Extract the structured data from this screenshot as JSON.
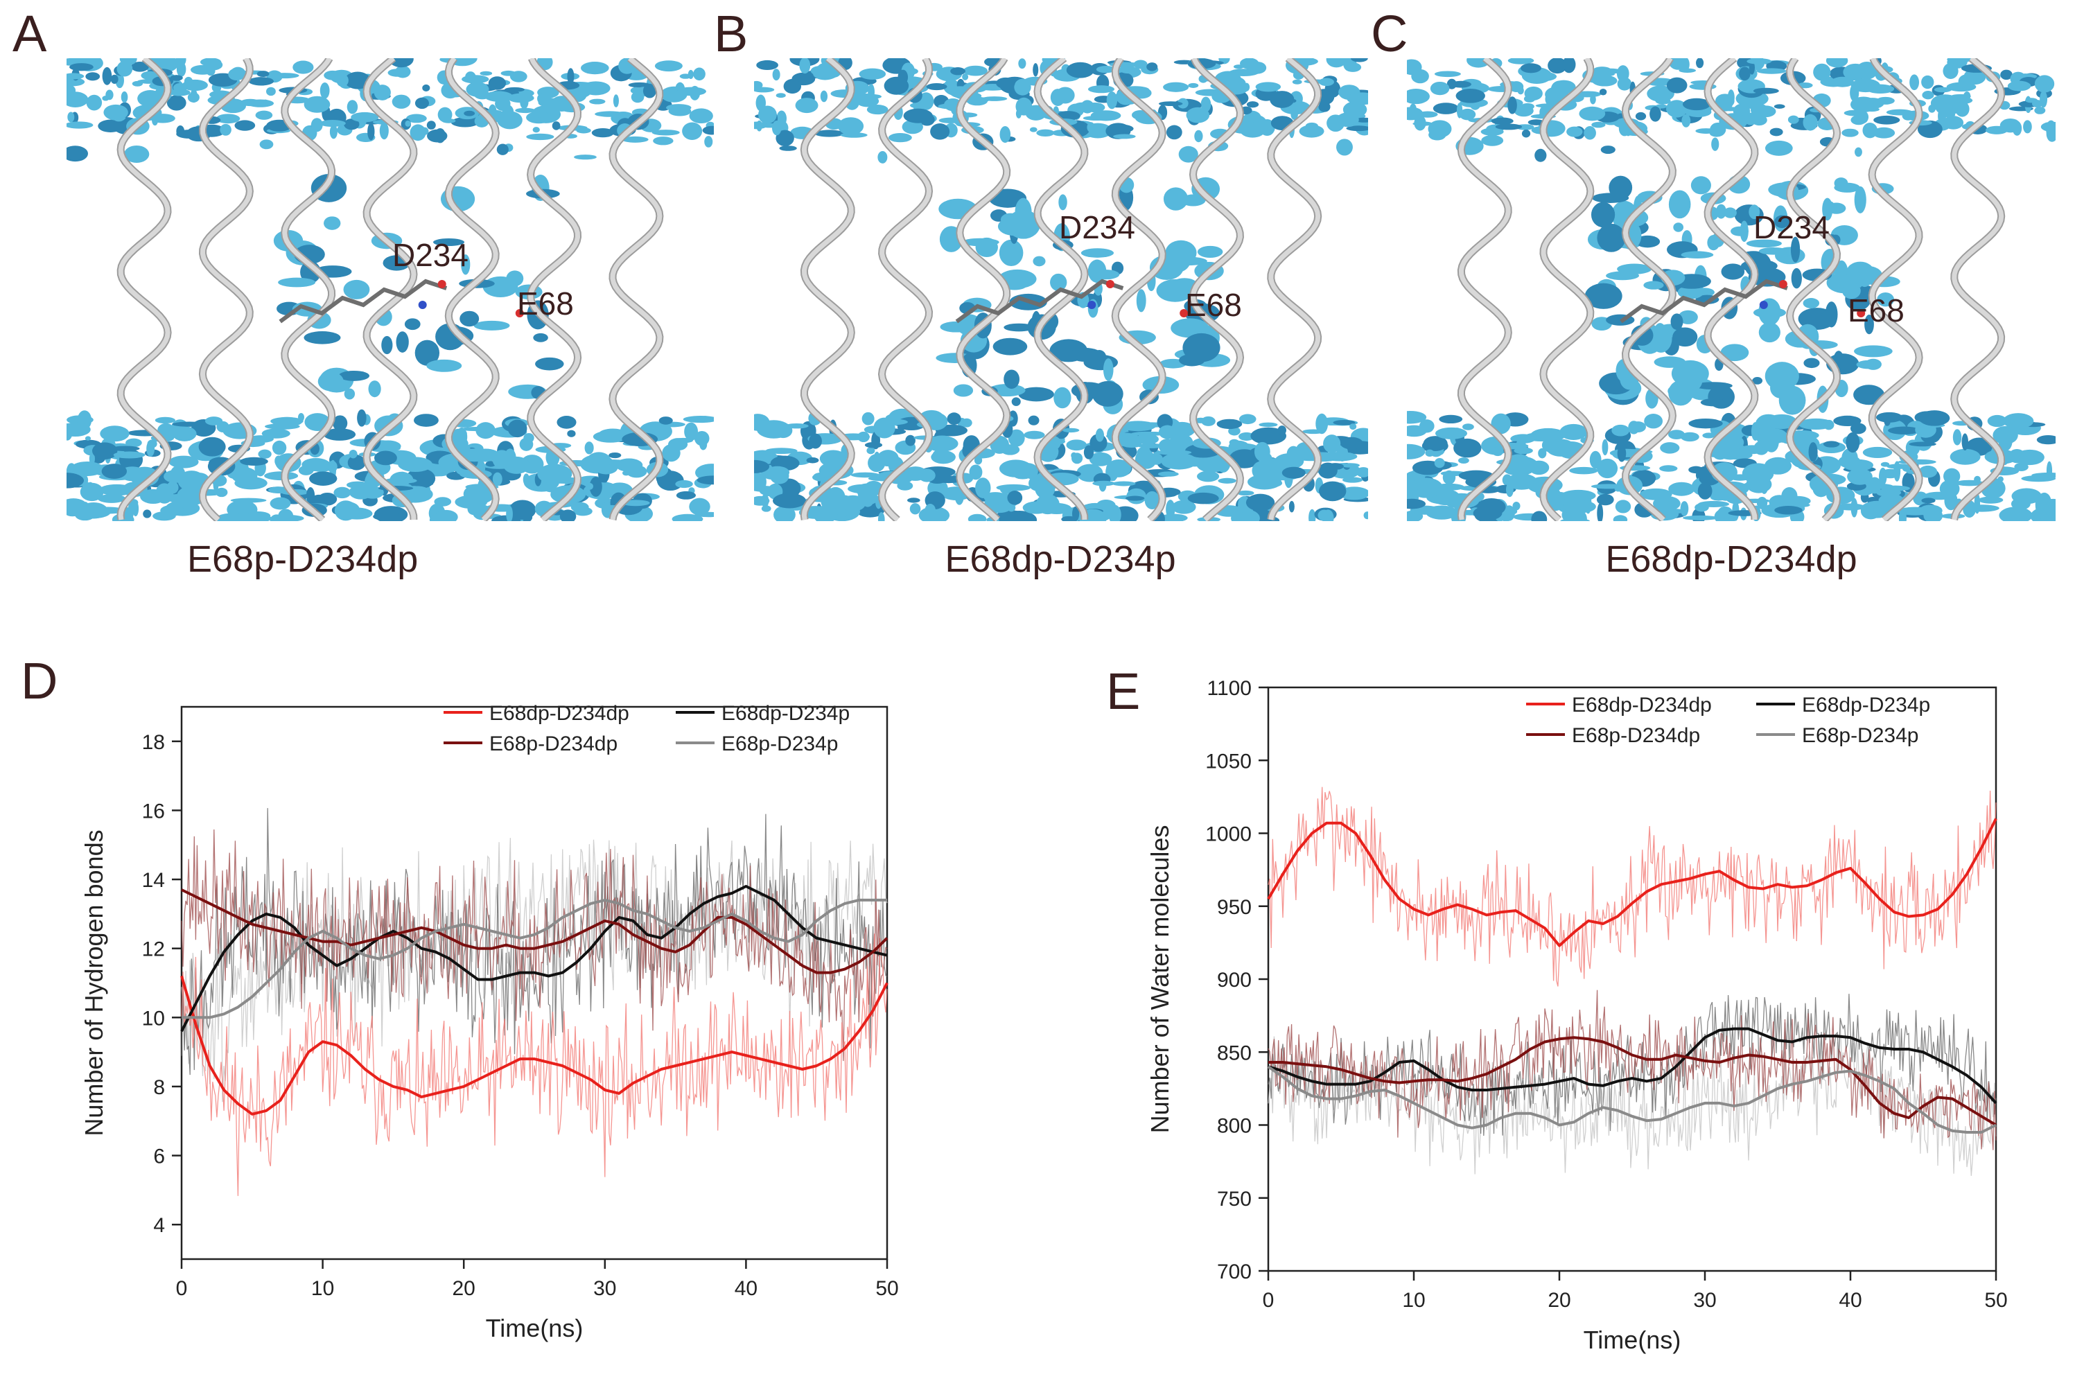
{
  "panels": {
    "A": {
      "letter": "A",
      "caption": "E68p-D234dp",
      "label_d234": "D234",
      "label_e68": "E68"
    },
    "B": {
      "letter": "B",
      "caption": "E68dp-D234p",
      "label_d234": "D234",
      "label_e68": "E68"
    },
    "C": {
      "letter": "C",
      "caption": "E68dp-D234dp",
      "label_d234": "D234",
      "label_e68": "E68"
    },
    "D": {
      "letter": "D"
    },
    "E": {
      "letter": "E"
    }
  },
  "colors": {
    "water": "#56b8dc",
    "water_dark": "#2e86b4",
    "helix": "#d8d8d8",
    "E68dp-D234dp": "#e8211c",
    "E68dp-D234p": "#111111",
    "E68p-D234dp": "#7a1010",
    "E68p-D234p": "#8a8a8a"
  },
  "chart_data": [
    {
      "type": "line",
      "panel": "D",
      "xlabel": "Time(ns)",
      "ylabel": "Number of Hydrogen bonds",
      "xlim": [
        0,
        50
      ],
      "ylim": [
        3,
        19
      ],
      "xticks": [
        0,
        10,
        20,
        30,
        40,
        50
      ],
      "yticks": [
        4,
        6,
        8,
        10,
        12,
        14,
        16,
        18
      ],
      "legend": {
        "placement": "top-right",
        "order": [
          "E68dp-D234dp",
          "E68dp-D234p",
          "E68p-D234dp",
          "E68p-D234p"
        ]
      },
      "smoothed_series": [
        {
          "name": "E68dp-D234dp",
          "x": [
            0,
            1,
            2,
            3,
            4,
            5,
            6,
            7,
            8,
            9,
            10,
            11,
            12,
            13,
            14,
            15,
            16,
            17,
            18,
            19,
            20,
            21,
            22,
            23,
            24,
            25,
            26,
            27,
            28,
            29,
            30,
            31,
            32,
            33,
            34,
            35,
            36,
            37,
            38,
            39,
            40,
            41,
            42,
            43,
            44,
            45,
            46,
            47,
            48,
            49,
            50
          ],
          "y": [
            11.2,
            9.8,
            8.6,
            7.9,
            7.5,
            7.2,
            7.3,
            7.6,
            8.3,
            9.0,
            9.3,
            9.2,
            8.9,
            8.5,
            8.2,
            8.0,
            7.9,
            7.7,
            7.8,
            7.9,
            8.0,
            8.2,
            8.4,
            8.6,
            8.8,
            8.8,
            8.7,
            8.6,
            8.4,
            8.2,
            7.9,
            7.8,
            8.1,
            8.3,
            8.5,
            8.6,
            8.7,
            8.8,
            8.9,
            9.0,
            8.9,
            8.8,
            8.7,
            8.6,
            8.5,
            8.6,
            8.8,
            9.1,
            9.6,
            10.2,
            11.0
          ]
        },
        {
          "name": "E68dp-D234p",
          "x": [
            0,
            1,
            2,
            3,
            4,
            5,
            6,
            7,
            8,
            9,
            10,
            11,
            12,
            13,
            14,
            15,
            16,
            17,
            18,
            19,
            20,
            21,
            22,
            23,
            24,
            25,
            26,
            27,
            28,
            29,
            30,
            31,
            32,
            33,
            34,
            35,
            36,
            37,
            38,
            39,
            40,
            41,
            42,
            43,
            44,
            45,
            46,
            47,
            48,
            49,
            50
          ],
          "y": [
            9.6,
            10.4,
            11.2,
            11.9,
            12.4,
            12.8,
            13.0,
            12.9,
            12.6,
            12.1,
            11.8,
            11.5,
            11.7,
            12.0,
            12.3,
            12.5,
            12.3,
            12.0,
            11.9,
            11.7,
            11.4,
            11.1,
            11.1,
            11.2,
            11.3,
            11.3,
            11.2,
            11.3,
            11.6,
            12.0,
            12.5,
            12.9,
            12.8,
            12.4,
            12.3,
            12.6,
            13.0,
            13.3,
            13.5,
            13.6,
            13.8,
            13.6,
            13.4,
            13.0,
            12.6,
            12.3,
            12.2,
            12.1,
            12.0,
            11.9,
            11.8
          ]
        },
        {
          "name": "E68p-D234dp",
          "x": [
            0,
            1,
            2,
            3,
            4,
            5,
            6,
            7,
            8,
            9,
            10,
            11,
            12,
            13,
            14,
            15,
            16,
            17,
            18,
            19,
            20,
            21,
            22,
            23,
            24,
            25,
            26,
            27,
            28,
            29,
            30,
            31,
            32,
            33,
            34,
            35,
            36,
            37,
            38,
            39,
            40,
            41,
            42,
            43,
            44,
            45,
            46,
            47,
            48,
            49,
            50
          ],
          "y": [
            13.7,
            13.5,
            13.3,
            13.1,
            12.9,
            12.7,
            12.6,
            12.5,
            12.4,
            12.3,
            12.2,
            12.2,
            12.1,
            12.2,
            12.3,
            12.4,
            12.5,
            12.6,
            12.5,
            12.3,
            12.1,
            12.0,
            12.0,
            12.1,
            12.0,
            12.0,
            12.1,
            12.2,
            12.4,
            12.6,
            12.8,
            12.7,
            12.4,
            12.2,
            12.0,
            11.9,
            12.1,
            12.5,
            12.9,
            12.9,
            12.7,
            12.4,
            12.1,
            11.8,
            11.5,
            11.3,
            11.3,
            11.4,
            11.6,
            11.9,
            12.3
          ]
        },
        {
          "name": "E68p-D234p",
          "x": [
            0,
            1,
            2,
            3,
            4,
            5,
            6,
            7,
            8,
            9,
            10,
            11,
            12,
            13,
            14,
            15,
            16,
            17,
            18,
            19,
            20,
            21,
            22,
            23,
            24,
            25,
            26,
            27,
            28,
            29,
            30,
            31,
            32,
            33,
            34,
            35,
            36,
            37,
            38,
            39,
            40,
            41,
            42,
            43,
            44,
            45,
            46,
            47,
            48,
            49,
            50
          ],
          "y": [
            10.0,
            10.0,
            10.0,
            10.1,
            10.3,
            10.6,
            11.0,
            11.4,
            11.9,
            12.3,
            12.5,
            12.3,
            12.0,
            11.8,
            11.7,
            11.8,
            12.0,
            12.3,
            12.5,
            12.6,
            12.7,
            12.6,
            12.5,
            12.4,
            12.3,
            12.4,
            12.6,
            12.9,
            13.1,
            13.3,
            13.4,
            13.3,
            13.1,
            13.0,
            12.8,
            12.6,
            12.5,
            12.6,
            12.8,
            13.0,
            12.8,
            12.5,
            12.3,
            12.2,
            12.4,
            12.8,
            13.1,
            13.3,
            13.4,
            13.4,
            13.4
          ]
        }
      ],
      "raw_series": [
        {
          "name": "E68dp-D234dp",
          "seed": 11,
          "center": "smoothed",
          "noise": 1.5,
          "min": 4,
          "max": 15,
          "points": 500
        },
        {
          "name": "E68dp-D234p",
          "seed": 23,
          "center": "smoothed",
          "noise": 1.7,
          "min": 7,
          "max": 18,
          "points": 500
        },
        {
          "name": "E68p-D234dp",
          "seed": 37,
          "center": "smoothed",
          "noise": 1.5,
          "min": 7,
          "max": 17,
          "points": 500
        },
        {
          "name": "E68p-D234p",
          "seed": 51,
          "center": "smoothed",
          "noise": 1.7,
          "min": 7,
          "max": 18,
          "points": 500
        }
      ]
    },
    {
      "type": "line",
      "panel": "E",
      "xlabel": "Time(ns)",
      "ylabel": "Number of Water molecules",
      "xlim": [
        0,
        50
      ],
      "ylim": [
        700,
        1100
      ],
      "xticks": [
        0,
        10,
        20,
        30,
        40,
        50
      ],
      "yticks": [
        700,
        750,
        800,
        850,
        900,
        950,
        1000,
        1050,
        1100
      ],
      "legend": {
        "placement": "top-right",
        "order": [
          "E68dp-D234dp",
          "E68dp-D234p",
          "E68p-D234dp",
          "E68p-D234p"
        ]
      },
      "smoothed_series": [
        {
          "name": "E68dp-D234dp",
          "x": [
            0,
            1,
            2,
            3,
            4,
            5,
            6,
            7,
            8,
            9,
            10,
            11,
            12,
            13,
            14,
            15,
            16,
            17,
            18,
            19,
            20,
            21,
            22,
            23,
            24,
            25,
            26,
            27,
            28,
            29,
            30,
            31,
            32,
            33,
            34,
            35,
            36,
            37,
            38,
            39,
            40,
            41,
            42,
            43,
            44,
            45,
            46,
            47,
            48,
            49,
            50
          ],
          "y": [
            955,
            972,
            988,
            1000,
            1007,
            1007,
            1000,
            985,
            968,
            955,
            948,
            944,
            948,
            951,
            948,
            944,
            946,
            947,
            941,
            935,
            923,
            932,
            940,
            938,
            943,
            952,
            960,
            965,
            967,
            969,
            972,
            974,
            968,
            963,
            962,
            965,
            963,
            964,
            968,
            973,
            976,
            966,
            955,
            946,
            943,
            944,
            948,
            958,
            972,
            990,
            1010
          ]
        },
        {
          "name": "E68dp-D234p",
          "x": [
            0,
            1,
            2,
            3,
            4,
            5,
            6,
            7,
            8,
            9,
            10,
            11,
            12,
            13,
            14,
            15,
            16,
            17,
            18,
            19,
            20,
            21,
            22,
            23,
            24,
            25,
            26,
            27,
            28,
            29,
            30,
            31,
            32,
            33,
            34,
            35,
            36,
            37,
            38,
            39,
            40,
            41,
            42,
            43,
            44,
            45,
            46,
            47,
            48,
            49,
            50
          ],
          "y": [
            840,
            837,
            833,
            830,
            828,
            828,
            828,
            830,
            836,
            843,
            844,
            838,
            831,
            826,
            824,
            824,
            825,
            826,
            827,
            828,
            830,
            832,
            828,
            827,
            830,
            832,
            830,
            832,
            840,
            850,
            860,
            865,
            866,
            866,
            862,
            858,
            857,
            860,
            861,
            861,
            860,
            856,
            853,
            852,
            852,
            850,
            845,
            840,
            834,
            826,
            815
          ]
        },
        {
          "name": "E68p-D234dp",
          "x": [
            0,
            1,
            2,
            3,
            4,
            5,
            6,
            7,
            8,
            9,
            10,
            11,
            12,
            13,
            14,
            15,
            16,
            17,
            18,
            19,
            20,
            21,
            22,
            23,
            24,
            25,
            26,
            27,
            28,
            29,
            30,
            31,
            32,
            33,
            34,
            35,
            36,
            37,
            38,
            39,
            40,
            41,
            42,
            43,
            44,
            45,
            46,
            47,
            48,
            49,
            50
          ],
          "y": [
            843,
            843,
            842,
            841,
            840,
            838,
            835,
            832,
            830,
            829,
            830,
            831,
            831,
            830,
            832,
            835,
            840,
            845,
            852,
            857,
            859,
            860,
            859,
            857,
            853,
            848,
            845,
            845,
            848,
            846,
            844,
            843,
            846,
            848,
            847,
            845,
            843,
            843,
            844,
            845,
            838,
            827,
            815,
            808,
            805,
            813,
            819,
            818,
            812,
            806,
            800
          ]
        },
        {
          "name": "E68p-D234p",
          "x": [
            0,
            1,
            2,
            3,
            4,
            5,
            6,
            7,
            8,
            9,
            10,
            11,
            12,
            13,
            14,
            15,
            16,
            17,
            18,
            19,
            20,
            21,
            22,
            23,
            24,
            25,
            26,
            27,
            28,
            29,
            30,
            31,
            32,
            33,
            34,
            35,
            36,
            37,
            38,
            39,
            40,
            41,
            42,
            43,
            44,
            45,
            46,
            47,
            48,
            49,
            50
          ],
          "y": [
            840,
            833,
            825,
            820,
            818,
            818,
            820,
            823,
            824,
            820,
            815,
            810,
            805,
            800,
            798,
            800,
            805,
            808,
            808,
            805,
            800,
            802,
            808,
            812,
            810,
            806,
            803,
            804,
            808,
            812,
            815,
            815,
            813,
            815,
            820,
            825,
            828,
            830,
            833,
            836,
            837,
            834,
            830,
            825,
            815,
            808,
            800,
            796,
            795,
            795,
            800
          ]
        }
      ],
      "raw_series": [
        {
          "name": "E68dp-D234dp",
          "seed": 7,
          "center": "smoothed",
          "noise": 28,
          "min": 895,
          "max": 1065,
          "points": 500
        },
        {
          "name": "E68dp-D234p",
          "seed": 19,
          "center": "smoothed",
          "noise": 22,
          "min": 770,
          "max": 930,
          "points": 500
        },
        {
          "name": "E68p-D234dp",
          "seed": 29,
          "center": "smoothed",
          "noise": 22,
          "min": 760,
          "max": 905,
          "points": 500
        },
        {
          "name": "E68p-D234p",
          "seed": 43,
          "center": "smoothed",
          "noise": 24,
          "min": 715,
          "max": 900,
          "points": 500
        }
      ]
    }
  ]
}
